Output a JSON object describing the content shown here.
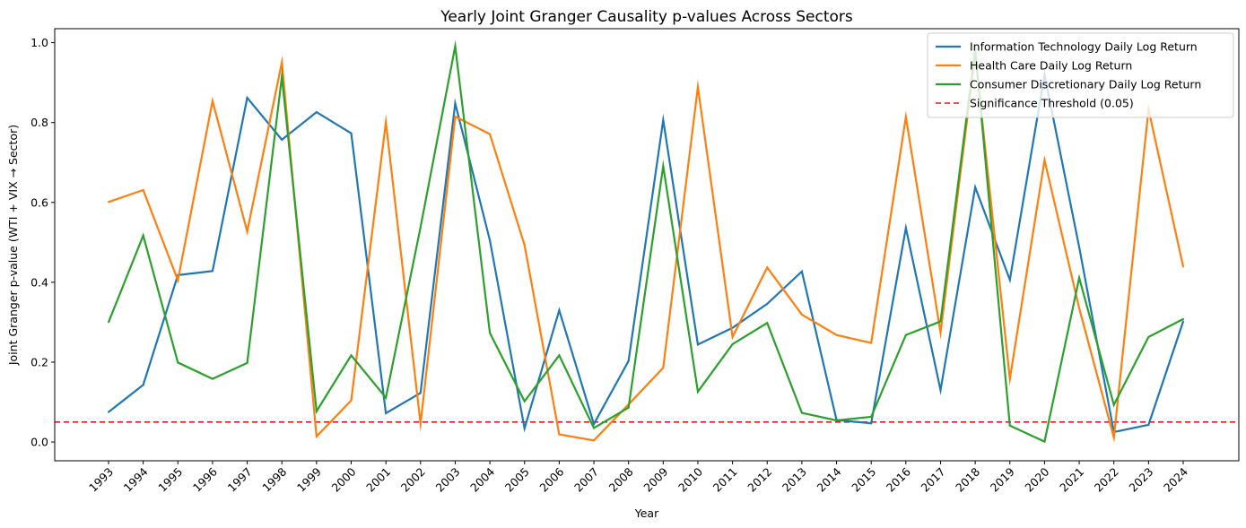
{
  "chart_data": {
    "type": "line",
    "title": "Yearly Joint Granger Causality p-values Across Sectors",
    "xlabel": "Year",
    "ylabel": "Joint Granger p-value (WTI + VIX → Sector)",
    "x": [
      "1993",
      "1994",
      "1995",
      "1996",
      "1997",
      "1998",
      "1999",
      "2000",
      "2001",
      "2002",
      "2003",
      "2004",
      "2005",
      "2006",
      "2007",
      "2008",
      "2009",
      "2010",
      "2011",
      "2012",
      "2013",
      "2014",
      "2015",
      "2016",
      "2017",
      "2018",
      "2019",
      "2020",
      "2021",
      "2022",
      "2023",
      "2024"
    ],
    "ylim": [
      -0.047,
      1.035
    ],
    "yticks": [
      0.0,
      0.2,
      0.4,
      0.6,
      0.8,
      1.0
    ],
    "ytick_labels": [
      "0.0",
      "0.2",
      "0.4",
      "0.6",
      "0.8",
      "1.0"
    ],
    "grid": false,
    "legend_position": "top-right",
    "series": [
      {
        "name": "Information Technology Daily Log Return",
        "color": "#1f77b4",
        "values": [
          0.075,
          0.143,
          0.418,
          0.428,
          0.862,
          0.757,
          0.826,
          0.773,
          0.072,
          0.123,
          0.848,
          0.505,
          0.034,
          0.33,
          0.045,
          0.203,
          0.806,
          0.244,
          0.286,
          0.346,
          0.427,
          0.055,
          0.047,
          0.536,
          0.13,
          0.638,
          0.406,
          0.92,
          0.488,
          0.025,
          0.043,
          0.302
        ]
      },
      {
        "name": "Health Care Daily Log Return",
        "color": "#ff7f0e",
        "values": [
          0.601,
          0.631,
          0.405,
          0.854,
          0.527,
          0.951,
          0.014,
          0.104,
          0.801,
          0.046,
          0.815,
          0.771,
          0.493,
          0.019,
          0.004,
          0.094,
          0.186,
          0.889,
          0.263,
          0.437,
          0.319,
          0.268,
          0.248,
          0.814,
          0.274,
          0.97,
          0.158,
          0.706,
          0.335,
          0.011,
          0.833,
          0.439
        ]
      },
      {
        "name": "Consumer Discretionary Daily Log Return",
        "color": "#2ca02c",
        "values": [
          0.3,
          0.517,
          0.199,
          0.158,
          0.198,
          0.915,
          0.077,
          0.217,
          0.111,
          0.538,
          0.991,
          0.273,
          0.102,
          0.217,
          0.035,
          0.086,
          0.691,
          0.126,
          0.245,
          0.298,
          0.073,
          0.054,
          0.063,
          0.268,
          0.302,
          0.983,
          0.041,
          0.001,
          0.411,
          0.093,
          0.263,
          0.308
        ]
      }
    ],
    "reference_lines": [
      {
        "name": "Significance Threshold (0.05)",
        "value": 0.05,
        "color": "#e31a1c",
        "style": "dashed"
      }
    ]
  }
}
